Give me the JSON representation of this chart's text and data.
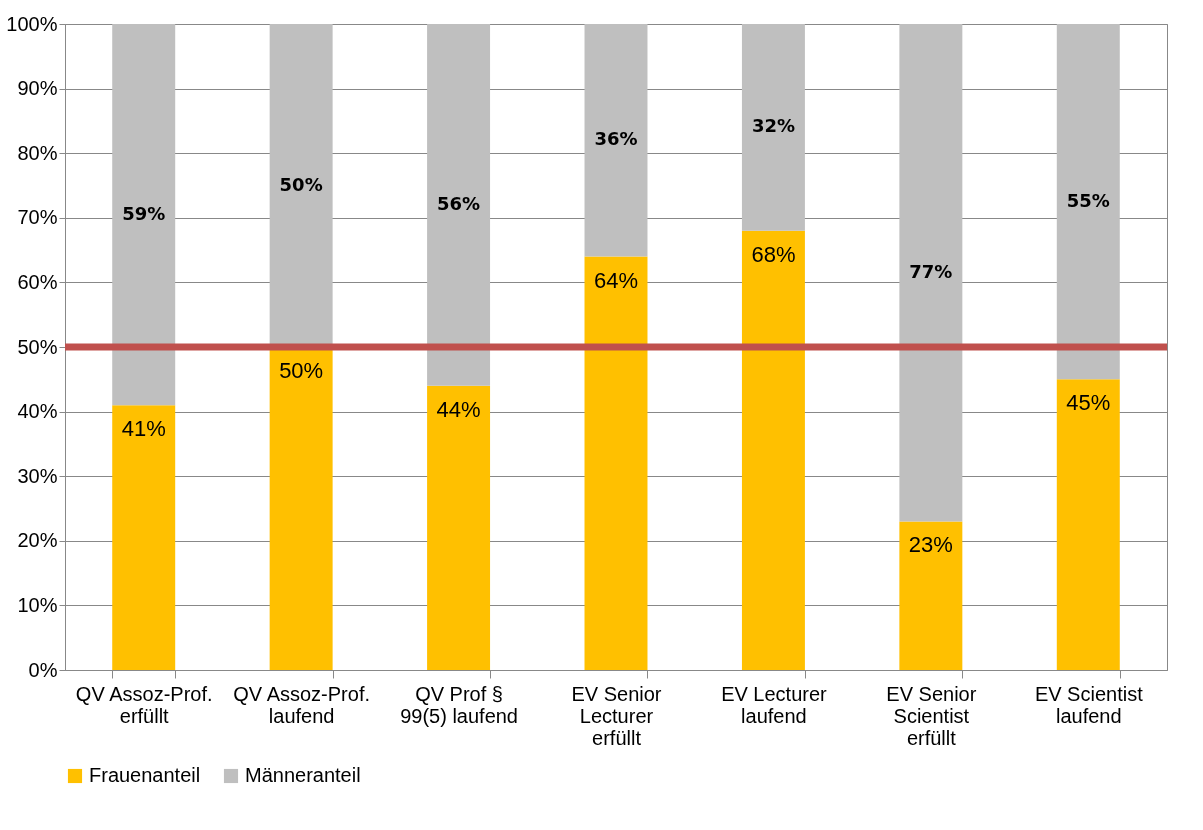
{
  "chart_data": {
    "type": "bar",
    "stacked": true,
    "categories": [
      "QV Assoz-Prof. erfüllt",
      "QV Assoz-Prof. laufend",
      "QV Prof § 99(5) laufend",
      "EV Senior Lecturer erfüllt",
      "EV Lecturer laufend",
      "EV Senior Scientist erfüllt",
      "EV Scientist laufend"
    ],
    "series": [
      {
        "name": "Frauenanteil",
        "color": "#ffc000",
        "values": [
          41,
          50,
          44,
          64,
          68,
          23,
          45
        ]
      },
      {
        "name": "Männeranteil",
        "color": "#bfbfbf",
        "values": [
          59,
          50,
          56,
          36,
          32,
          77,
          55
        ]
      }
    ],
    "ylim": [
      0,
      100
    ],
    "yticks": [
      {
        "value": 0,
        "label": "0%"
      },
      {
        "value": 10,
        "label": "10%"
      },
      {
        "value": 20,
        "label": "20%"
      },
      {
        "value": 30,
        "label": "30%"
      },
      {
        "value": 40,
        "label": "40%"
      },
      {
        "value": 50,
        "label": "50%"
      },
      {
        "value": 60,
        "label": "60%"
      },
      {
        "value": 70,
        "label": "70%"
      },
      {
        "value": 80,
        "label": "80%"
      },
      {
        "value": 90,
        "label": "90%"
      },
      {
        "value": 100,
        "label": "100%"
      }
    ],
    "value_labels": [
      [
        "41%",
        "50%",
        "44%",
        "64%",
        "68%",
        "23%",
        "45%"
      ],
      [
        "59%",
        "50%",
        "56%",
        "36%",
        "32%",
        "77%",
        "55%"
      ]
    ],
    "ref_lines": [
      {
        "axis": "y",
        "value": 50,
        "color": "#c0504d"
      }
    ],
    "grid": "y",
    "legend": "bottom"
  }
}
